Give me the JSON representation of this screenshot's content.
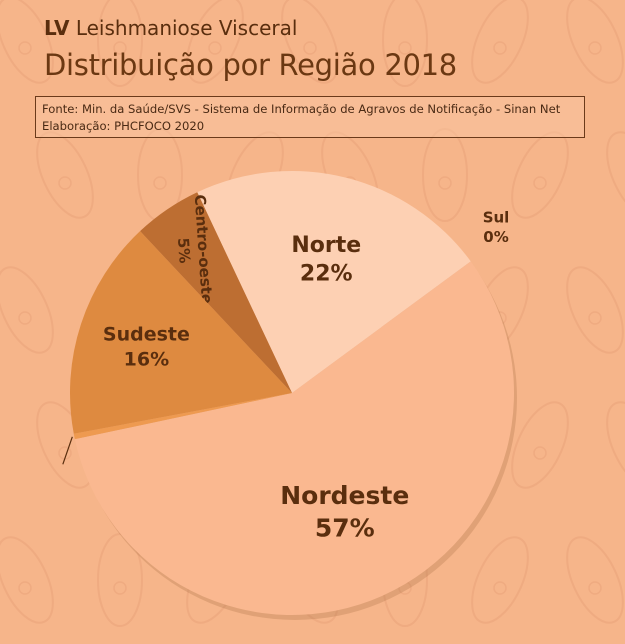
{
  "header": {
    "abbr": "LV",
    "disease": "Leishmaniose Visceral",
    "subtitle": "Distribuição por Região 2018"
  },
  "source": {
    "line1": "Fonte: Min. da Saúde/SVS - Sistema de Informação de Agravos de Notificação - Sinan Net",
    "line2": "Elaboração: PHCFOCO 2020"
  },
  "chart_data": {
    "type": "pie",
    "title": "Distribuição por Região 2018",
    "slices": [
      {
        "name": "Nordeste",
        "label": "57%",
        "value": 57,
        "color": "#FAB890",
        "label_color": "#5A2E0E"
      },
      {
        "name": "Norte",
        "label": "22%",
        "value": 22,
        "color": "#FDD0B3",
        "label_color": "#5A2E0E"
      },
      {
        "name": "Centro-oeste",
        "label": "5%",
        "value": 5,
        "color": "#BD6E32",
        "label_color": "#4A2A14"
      },
      {
        "name": "Sudeste",
        "label": "16%",
        "value": 16,
        "color": "#DE8A40",
        "label_color": "#5A2E0E"
      },
      {
        "name": "Sul",
        "label": "0%",
        "value": 0.4,
        "color": "#EE9A50",
        "label_color": "#5A2E0E"
      }
    ],
    "start_angle_deg": 192,
    "direction": "counterclockwise",
    "background_color": "#F6B58A"
  }
}
